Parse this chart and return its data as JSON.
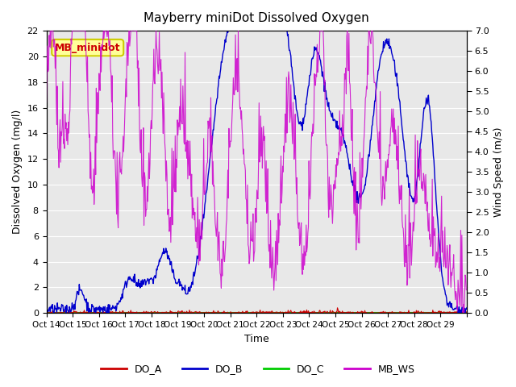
{
  "title": "Mayberry miniDot Dissolved Oxygen",
  "xlabel": "Time",
  "ylabel_left": "Dissolved Oxygen (mg/l)",
  "ylabel_right": "Wind Speed (m/s)",
  "ylim_left": [
    0,
    22
  ],
  "ylim_right": [
    0,
    7.0
  ],
  "yticks_left": [
    0,
    2,
    4,
    6,
    8,
    10,
    12,
    14,
    16,
    18,
    20,
    22
  ],
  "yticks_right": [
    0.0,
    0.5,
    1.0,
    1.5,
    2.0,
    2.5,
    3.0,
    3.5,
    4.0,
    4.5,
    5.0,
    5.5,
    6.0,
    6.5,
    7.0
  ],
  "xtick_positions": [
    0,
    1,
    2,
    3,
    4,
    5,
    6,
    7,
    8,
    9,
    10,
    11,
    12,
    13,
    14,
    15,
    16
  ],
  "xtick_labels": [
    "Oct 14",
    "Oct 15",
    "Oct 16",
    "Oct 17",
    "Oct 18",
    "Oct 19",
    "Oct 20",
    "Oct 21",
    "Oct 22",
    "Oct 23",
    "Oct 24",
    "Oct 25",
    "Oct 26",
    "Oct 27",
    "Oct 28",
    "Oct 29",
    ""
  ],
  "colors": {
    "DO_A": "#cc0000",
    "DO_B": "#0000cc",
    "DO_C": "#00cc00",
    "MB_WS": "#cc00cc"
  },
  "background_color": "#e8e8e8",
  "annotation_text": "MB_minidot",
  "annotation_color": "#cc0000",
  "annotation_bg": "#ffff99",
  "annotation_border": "#cccc00"
}
